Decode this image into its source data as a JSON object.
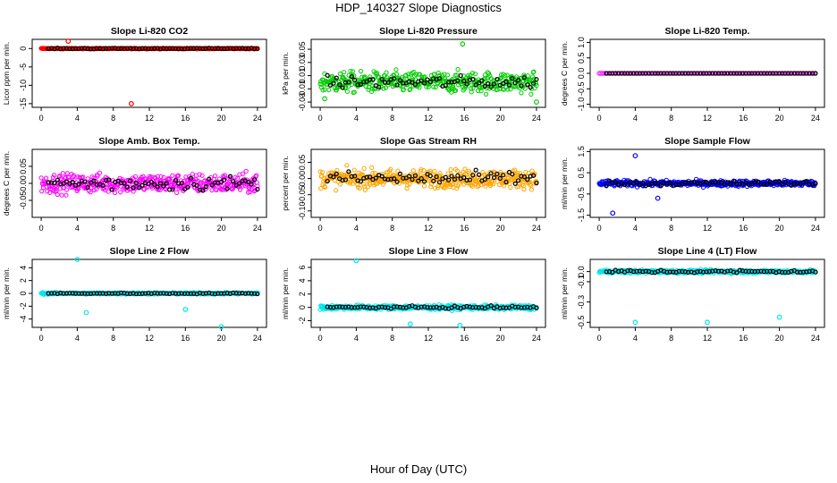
{
  "figure": {
    "title": "HDP_140327  Slope Diagnostics",
    "xlabel": "Hour of Day (UTC)"
  },
  "chart_data": [
    {
      "type": "scatter",
      "title": "Slope Li-820 CO2",
      "ylabel": "Licor ppm per min.",
      "color": "#ff0000",
      "ylim": [
        -16,
        2.5
      ],
      "yticks": [
        0,
        -5,
        -10,
        -15
      ],
      "ytick_labels": [
        "0",
        "-5",
        "-10",
        "-15"
      ],
      "xlim": [
        -1,
        25
      ],
      "xticks": [
        0,
        4,
        8,
        12,
        16,
        20,
        24
      ],
      "noise": 0.2,
      "outliers": [
        [
          3,
          2
        ],
        [
          10,
          -15
        ]
      ],
      "black_amp": 0.2
    },
    {
      "type": "scatter",
      "title": "Slope Li-820 Pressure",
      "ylabel": "kPa per min.",
      "color": "#00cc00",
      "ylim": [
        -0.038,
        0.065
      ],
      "yticks": [
        -0.03,
        -0.01,
        0.01,
        0.03,
        0.05
      ],
      "ytick_labels": [
        "-0.03",
        "-0.01",
        "0.01",
        "0.03",
        "0.05"
      ],
      "xlim": [
        -1,
        25
      ],
      "xticks": [
        0,
        4,
        8,
        12,
        16,
        20,
        24
      ],
      "noise": 0.028,
      "outliers": [
        [
          0.5,
          -0.025
        ],
        [
          15.8,
          0.058
        ],
        [
          24,
          -0.03
        ]
      ],
      "black_amp": 0.015
    },
    {
      "type": "scatter",
      "title": "Slope Li-820 Temp.",
      "ylabel": "degrees C per min.",
      "color": "#ff00ff",
      "ylim": [
        -1.1,
        1.1
      ],
      "yticks": [
        -1,
        -0.5,
        0,
        0.5,
        1
      ],
      "ytick_labels": [
        "-1.0",
        "-0.5",
        "0.0",
        "0.5",
        "1.0"
      ],
      "xlim": [
        -1,
        25
      ],
      "xticks": [
        0,
        4,
        8,
        12,
        16,
        20,
        24
      ],
      "noise": 0,
      "outliers": [],
      "black_amp": 0
    },
    {
      "type": "scatter",
      "title": "Slope Amb. Box Temp.",
      "ylabel": "degrees C per min.",
      "color": "#ff00ff",
      "ylim": [
        -0.1,
        0.1
      ],
      "yticks": [
        -0.05,
        0,
        0.05
      ],
      "ytick_labels": [
        "-0.05",
        "0.00",
        "0.05"
      ],
      "xlim": [
        -1,
        25
      ],
      "xticks": [
        0,
        4,
        8,
        12,
        16,
        20,
        24
      ],
      "noise": 0.05,
      "outliers": [],
      "black_amp": 0.035
    },
    {
      "type": "scatter",
      "title": "Slope Gas Stream RH",
      "ylabel": "percent per min.",
      "color": "#ffa500",
      "ylim": [
        -0.12,
        0.09
      ],
      "yticks": [
        -0.1,
        -0.05,
        0,
        0.05
      ],
      "ytick_labels": [
        "-0.10",
        "-0.05",
        "0.00",
        "0.05"
      ],
      "xlim": [
        -1,
        25
      ],
      "xticks": [
        0,
        4,
        8,
        12,
        16,
        20,
        24
      ],
      "noise": 0.05,
      "outliers": [],
      "black_amp": 0.035
    },
    {
      "type": "scatter",
      "title": "Slope Sample Flow",
      "ylabel": "ml/min per min.",
      "color": "#0000ff",
      "ylim": [
        -1.6,
        1.6
      ],
      "yticks": [
        -1.5,
        -0.5,
        0.5,
        1.5
      ],
      "ytick_labels": [
        "-1.5",
        "-0.5",
        "0.5",
        "1.5"
      ],
      "xlim": [
        -1,
        25
      ],
      "xticks": [
        0,
        4,
        8,
        12,
        16,
        20,
        24
      ],
      "noise": 0.25,
      "outliers": [
        [
          1.5,
          -1.4
        ],
        [
          4,
          1.3
        ],
        [
          6.5,
          -0.7
        ]
      ],
      "black_amp": 0.2
    },
    {
      "type": "scatter",
      "title": "Slope Line 2 Flow",
      "ylabel": "ml/min per min.",
      "color": "#00e5ee",
      "ylim": [
        -5.3,
        5.3
      ],
      "yticks": [
        -4,
        -2,
        0,
        2,
        4
      ],
      "ytick_labels": [
        "-4",
        "-2",
        "0",
        "2",
        "4"
      ],
      "xlim": [
        -1,
        25
      ],
      "xticks": [
        0,
        4,
        8,
        12,
        16,
        20,
        24
      ],
      "noise": 0.25,
      "outliers": [
        [
          4,
          5.3
        ],
        [
          5,
          -3
        ],
        [
          20,
          -5.2
        ],
        [
          16,
          -2.5
        ]
      ],
      "black_amp": 0.15
    },
    {
      "type": "scatter",
      "title": "Slope Line 3 Flow",
      "ylabel": "ml/min per min.",
      "color": "#00e5ee",
      "ylim": [
        -3,
        7.2
      ],
      "yticks": [
        -2,
        0,
        2,
        4,
        6
      ],
      "ytick_labels": [
        "-2",
        "0",
        "2",
        "4",
        "6"
      ],
      "xlim": [
        -1,
        25
      ],
      "xticks": [
        0,
        4,
        8,
        12,
        16,
        20,
        24
      ],
      "noise": 0.6,
      "outliers": [
        [
          4,
          7
        ],
        [
          10,
          -2.5
        ],
        [
          15.5,
          -2.7
        ]
      ],
      "black_amp": 0.3
    },
    {
      "type": "scatter",
      "title": "Slope Line 4 (LT) Flow",
      "ylabel": "ml/min per min.",
      "color": "#00e5ee",
      "ylim": [
        -0.55,
        0.12
      ],
      "yticks": [
        -0.5,
        -0.3,
        -0.1,
        0
      ],
      "ytick_labels": [
        "-0.5",
        "-0.3",
        "-0.1",
        "0.0"
      ],
      "xlim": [
        -1,
        25
      ],
      "xticks": [
        0,
        4,
        8,
        12,
        16,
        20,
        24
      ],
      "noise": 0.03,
      "outliers": [
        [
          4,
          -0.5
        ],
        [
          12,
          -0.5
        ],
        [
          20,
          -0.45
        ]
      ],
      "black_amp": 0.025
    }
  ]
}
